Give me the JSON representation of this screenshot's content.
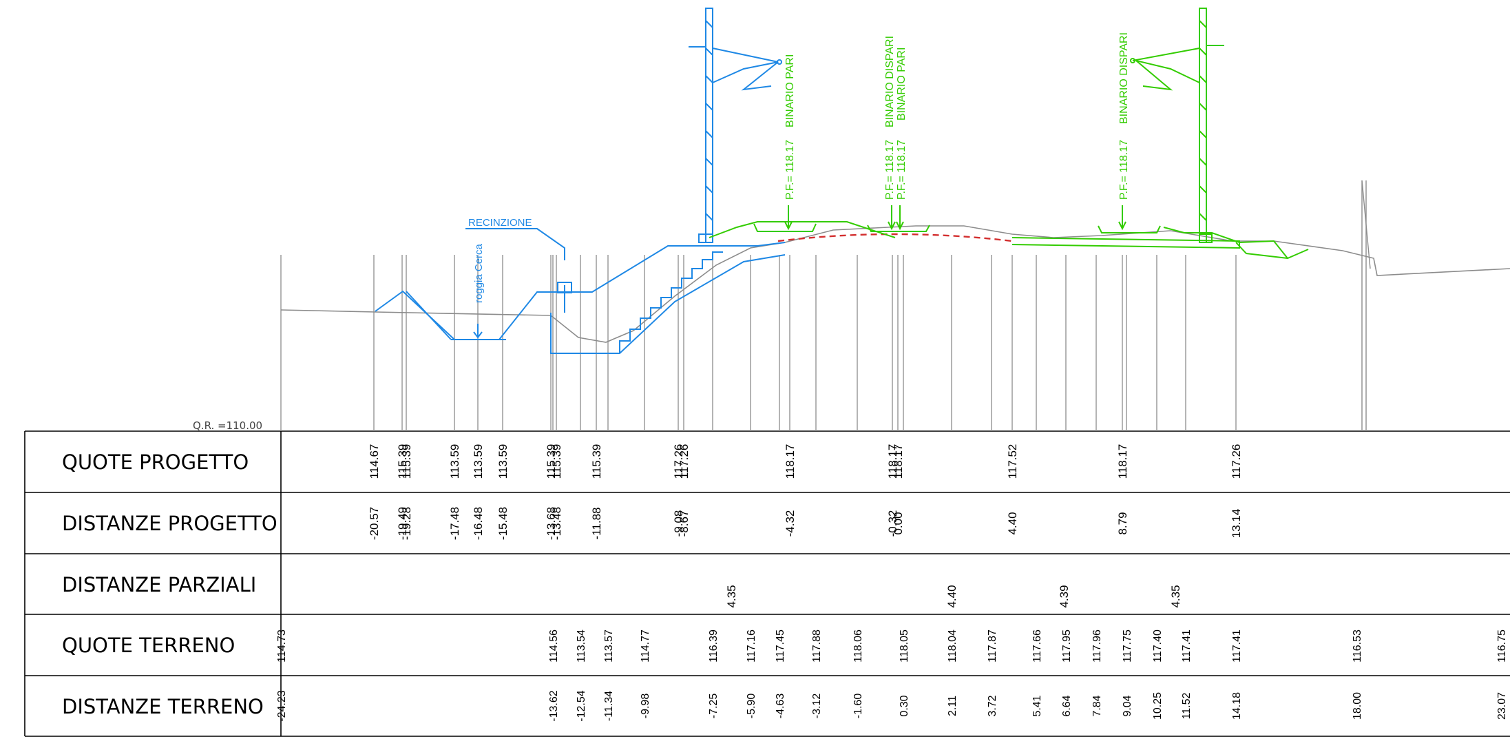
{
  "reference_level": "Q.R. =110.00",
  "labels": {
    "recinzione": "RECINZIONE",
    "roggia": "roggia Cerca",
    "binario_pari_1": "BINARIO PARI",
    "binario_dispari_1": "BINARIO DISPARI",
    "binario_pari_2": "BINARIO PARI",
    "binario_dispari_2": "BINARIO DISPARI",
    "pf_1": "P.F.= 118.17",
    "pf_2a": "P.F.= 118.17",
    "pf_2b": "P.F.= 118.17",
    "pf_3": "P.F.= 118.17"
  },
  "rows": [
    {
      "label": "QUOTE PROGETTO"
    },
    {
      "label": "DISTANZE PROGETTO"
    },
    {
      "label": "DISTANZE PARZIALI"
    },
    {
      "label": "QUOTE TERRENO"
    },
    {
      "label": "DISTANZE TERRENO"
    }
  ],
  "quote_progetto": [
    "114.67",
    "115.39",
    "115.39",
    "113.59",
    "113.59",
    "113.59",
    "115.39",
    "115.39",
    "115.39",
    "117.26",
    "117.26",
    "118.17",
    "118.17",
    "118.17",
    "117.52",
    "118.17",
    "117.26"
  ],
  "distanze_progetto": [
    "-20.57",
    "-19.49",
    "-19.28",
    "-17.48",
    "-16.48",
    "-15.48",
    "-13.68",
    "-13.48",
    "-11.88",
    "-9.08",
    "-8.67",
    "-4.32",
    "-0.32",
    "0.00",
    "4.40",
    "8.79",
    "13.14"
  ],
  "distanze_parziali": [
    "4.35",
    "4.40",
    "4.39",
    "4.35"
  ],
  "quote_terreno": [
    "114.73",
    "114.56",
    "113.54",
    "113.57",
    "114.77",
    "116.39",
    "117.16",
    "117.45",
    "117.88",
    "118.06",
    "118.05",
    "118.04",
    "117.87",
    "117.66",
    "117.95",
    "117.96",
    "117.75",
    "117.40",
    "117.41",
    "117.41",
    "116.53",
    "116.75"
  ],
  "distanze_terreno": [
    "-24.23",
    "-13.62",
    "-12.54",
    "-11.34",
    "-9.98",
    "-7.25",
    "-5.90",
    "-4.63",
    "-3.12",
    "-1.60",
    "0.30",
    "2.11",
    "3.72",
    "5.41",
    "6.64",
    "7.84",
    "9.04",
    "10.25",
    "11.52",
    "14.18",
    "18.00",
    "23.07"
  ],
  "colors": {
    "blue": "#1e88e5",
    "green": "#33cc00",
    "grey": "#8c8c8c",
    "red_dashed": "#d32f2f"
  }
}
